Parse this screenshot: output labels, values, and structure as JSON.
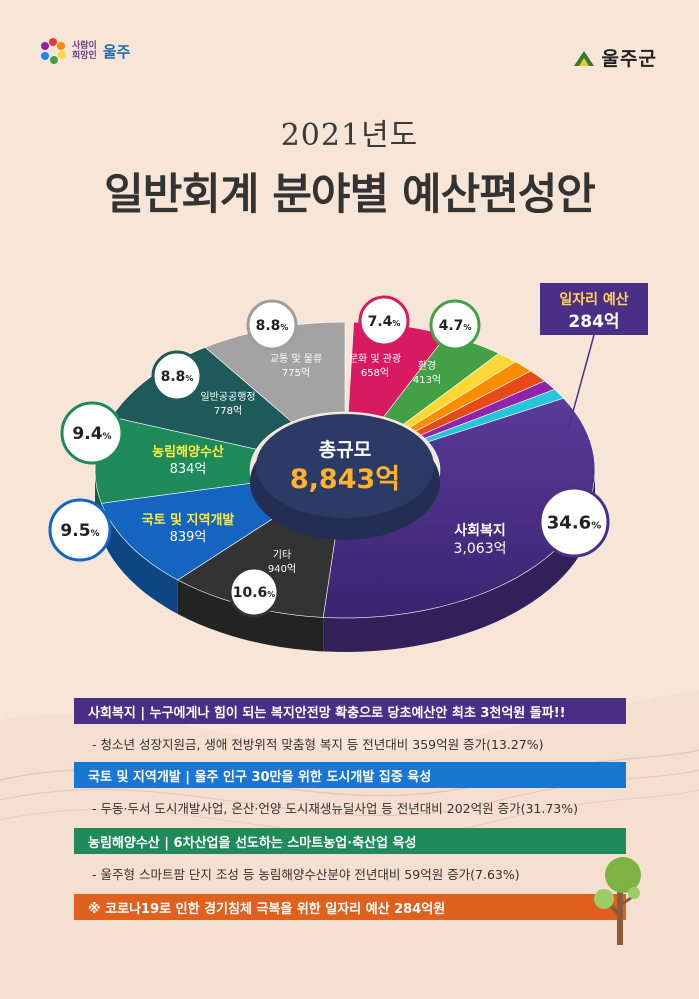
{
  "header": {
    "slogan_top": "사람이",
    "slogan_bottom": "희망인",
    "slogan_name": "울주",
    "org_name": "울주군"
  },
  "year_title": "2021년도",
  "main_title": "일반회계 분야별 예산편성안",
  "center": {
    "label": "총규모",
    "value": "8,843억"
  },
  "callout": {
    "label": "일자리 예산",
    "value": "284억"
  },
  "chart_data": {
    "type": "pie",
    "title": "일반회계 분야별 예산편성안",
    "total": "8,843억",
    "unit": "억",
    "slices": [
      {
        "name": "사회복지",
        "value": 3063,
        "value_label": "3,063억",
        "percent": "34.6",
        "color": "#4b2f86"
      },
      {
        "name": "기타",
        "value": 940,
        "value_label": "940억",
        "percent": "10.6",
        "color": "#333333"
      },
      {
        "name": "국토 및 지역개발",
        "value": 839,
        "value_label": "839억",
        "percent": "9.5",
        "color": "#1565c0"
      },
      {
        "name": "농림해양수산",
        "value": 834,
        "value_label": "834억",
        "percent": "9.4",
        "color": "#1f8a5a"
      },
      {
        "name": "일반공공행정",
        "value": 778,
        "value_label": "778억",
        "percent": "8.8",
        "color": "#1f5a5a"
      },
      {
        "name": "교통 및 물류",
        "value": 775,
        "value_label": "775억",
        "percent": "8.8",
        "color": "#a3a3a3"
      },
      {
        "name": "문화 및 관광",
        "value": 658,
        "value_label": "658억",
        "percent": "7.4",
        "color": "#d81b60"
      },
      {
        "name": "환경",
        "value": 413,
        "value_label": "413억",
        "percent": "4.7",
        "color": "#43a047"
      }
    ],
    "minor_colors": [
      "#fdd835",
      "#fb8c00",
      "#e64a19",
      "#8e24aa",
      "#26c6da"
    ]
  },
  "sections": [
    {
      "text": "사회복지  |  누구에게나 힘이 되는 복지안전망 확충으로 당초예산안 최초 3천억원 돌파!!",
      "color": "#4b2f86",
      "desc": "- 청소년 성장지원금, 생애 전방위적 맞춤형 복지 등 전년대비 359억원 증가(13.27%)"
    },
    {
      "text": "국토 및 지역개발  |  울주 인구 30만을 위한 도시개발 집중 육성",
      "color": "#1976d2",
      "desc": "- 두동·두서 도시개발사업, 온산·언양 도시재생뉴딜사업 등 전년대비 202억원 증가(31.73%)"
    },
    {
      "text": "농림해양수산  | 6차산업을 선도하는 스마트농업·축산업 육성",
      "color": "#1f8a5a",
      "desc": "- 울주형 스마트팜 단지 조성 등 농림해양수산분야 전년대비 59억원 증가(7.63%)"
    },
    {
      "text": "※ 코로나19로 인한 경기침체 극복을 위한 일자리 예산 284억원",
      "color": "#e0601e",
      "desc": ""
    }
  ]
}
